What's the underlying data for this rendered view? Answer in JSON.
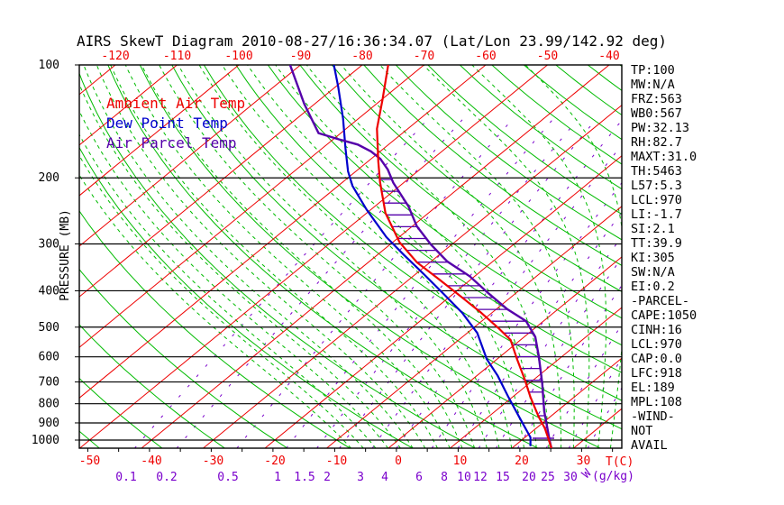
{
  "title": "AIRS SkewT Diagram 2010-08-27/16:36:34.07 (Lat/Lon 23.99/142.92 deg)",
  "legend": {
    "ambient": "Ambient Air Temp",
    "dew": "Dew Point Temp",
    "parcel": "Air Parcel Temp"
  },
  "axes": {
    "pressure_label": "PRESSURE (MB)",
    "pressure_ticks": [
      100,
      200,
      300,
      400,
      500,
      600,
      700,
      800,
      900,
      1000
    ],
    "temp_top_labels": [
      -120,
      -110,
      -100,
      -90,
      -80,
      -70,
      -60,
      -50,
      -40
    ],
    "temp_bottom_labels": [
      -50,
      -40,
      -30,
      -20,
      -10,
      0,
      10,
      20,
      30
    ],
    "temp_unit": "T(C)",
    "mixing_ratio_values": [
      0.1,
      0.2,
      0.5,
      1,
      1.5,
      2,
      3,
      4,
      6,
      8,
      10,
      12,
      15,
      20,
      25,
      30
    ],
    "mixing_ratio_symbol": "W",
    "mixing_ratio_unit": "(g/kg)"
  },
  "stats": [
    "TP:100",
    "MW:N/A",
    "FRZ:563",
    "WB0:567",
    "PW:32.13",
    "RH:82.7",
    "MAXT:31.0",
    "TH:5463",
    "L57:5.3",
    "LCL:970",
    "LI:-1.7",
    "SI:2.1",
    "TT:39.9",
    "KI:305",
    "SW:N/A",
    "EI:0.2",
    "-PARCEL-",
    "CAPE:1050",
    "CINH:16",
    "LCL:970",
    "CAP:0.0",
    "LFC:918",
    "EL:189",
    "MPL:108",
    "-WIND-",
    "NOT",
    "AVAIL"
  ],
  "colors": {
    "isotherm": "#ee0000",
    "dry_adiabat": "#00bb00",
    "moist_adiabat": "#00bb00",
    "mixing_ratio": "#7a00cc",
    "ambient_curve": "#ee0000",
    "dew_curve": "#0000cc",
    "parcel_curve": "#5500aa",
    "hatch": "#5500aa",
    "axis": "#000000",
    "title_text": "#000000",
    "stats_text": "#000000"
  },
  "chart_data": {
    "type": "line",
    "title": "AIRS SkewT Diagram 2010-08-27/16:36:34.07 (Lat/Lon 23.99/142.92 deg)",
    "x_axis": {
      "label": "T(C)",
      "tick_range": [
        -120,
        30
      ],
      "tick_step": 10,
      "skewed": true
    },
    "y_axis": {
      "label": "PRESSURE (MB)",
      "scale": "log",
      "range": [
        1050,
        100
      ]
    },
    "legend_position": "top-left-inside",
    "series": [
      {
        "name": "Ambient Air Temp",
        "color": "#ee0000",
        "points_p_mb_t_c": [
          [
            1051,
            26.4
          ],
          [
            1000,
            24.4
          ],
          [
            930,
            21.4
          ],
          [
            866,
            18.1
          ],
          [
            768,
            12.9
          ],
          [
            686,
            8.3
          ],
          [
            608,
            3.2
          ],
          [
            541,
            -1.6
          ],
          [
            503,
            -5.9
          ],
          [
            456,
            -12.0
          ],
          [
            412,
            -18.6
          ],
          [
            371,
            -25.5
          ],
          [
            336,
            -32.1
          ],
          [
            297,
            -38.9
          ],
          [
            248,
            -47.0
          ],
          [
            205,
            -54.0
          ],
          [
            181,
            -58.3
          ],
          [
            148,
            -65.0
          ],
          [
            124,
            -69.8
          ],
          [
            100,
            -75.8
          ]
        ]
      },
      {
        "name": "Dew Point Temp",
        "color": "#0000cc",
        "points_p_mb_t_c": [
          [
            1038,
            22.6
          ],
          [
            984,
            20.9
          ],
          [
            862,
            14.7
          ],
          [
            764,
            9.1
          ],
          [
            674,
            3.4
          ],
          [
            608,
            -1.7
          ],
          [
            518,
            -8.4
          ],
          [
            458,
            -14.8
          ],
          [
            406,
            -21.8
          ],
          [
            361,
            -28.7
          ],
          [
            321,
            -35.7
          ],
          [
            288,
            -42.0
          ],
          [
            243,
            -50.7
          ],
          [
            210,
            -57.7
          ],
          [
            192,
            -61.3
          ],
          [
            167,
            -66.2
          ],
          [
            139,
            -72.5
          ],
          [
            114,
            -79.7
          ],
          [
            100,
            -84.6
          ]
        ]
      },
      {
        "name": "Air Parcel Temp",
        "color": "#5500aa",
        "points_p_mb_t_c": [
          [
            1051,
            26.4
          ],
          [
            1000,
            24.5
          ],
          [
            837,
            17.9
          ],
          [
            706,
            12.1
          ],
          [
            598,
            6.2
          ],
          [
            531,
            1.8
          ],
          [
            482,
            -2.8
          ],
          [
            448,
            -8.2
          ],
          [
            407,
            -14.3
          ],
          [
            366,
            -20.8
          ],
          [
            334,
            -27.4
          ],
          [
            301,
            -33.4
          ],
          [
            269,
            -39.3
          ],
          [
            238,
            -44.6
          ],
          [
            206,
            -51.7
          ],
          [
            190,
            -55.2
          ],
          [
            178,
            -58.5
          ],
          [
            170,
            -61.5
          ],
          [
            163,
            -65.0
          ],
          [
            158,
            -69.0
          ],
          [
            152,
            -73.6
          ],
          [
            127,
            -81.7
          ],
          [
            100,
            -91.7
          ]
        ]
      }
    ],
    "background_lines": {
      "isotherms_c": {
        "from": -130,
        "to": 40,
        "step": 10
      },
      "dry_adiabats_theta_c": {
        "from": -50,
        "to": 180,
        "step": 10
      },
      "moist_adiabats_surface_t_c": {
        "from": -6,
        "to": 36,
        "step": 2
      },
      "mixing_ratio_g_kg": [
        0.1,
        0.2,
        0.5,
        1,
        1.5,
        2,
        3,
        4,
        6,
        8,
        10,
        12,
        15,
        20,
        25,
        30
      ]
    },
    "cape_region": {
      "between": [
        "Ambient Air Temp",
        "Air Parcel Temp"
      ],
      "hatched": true,
      "from_p_mb": 918,
      "to_p_mb": 189
    }
  }
}
